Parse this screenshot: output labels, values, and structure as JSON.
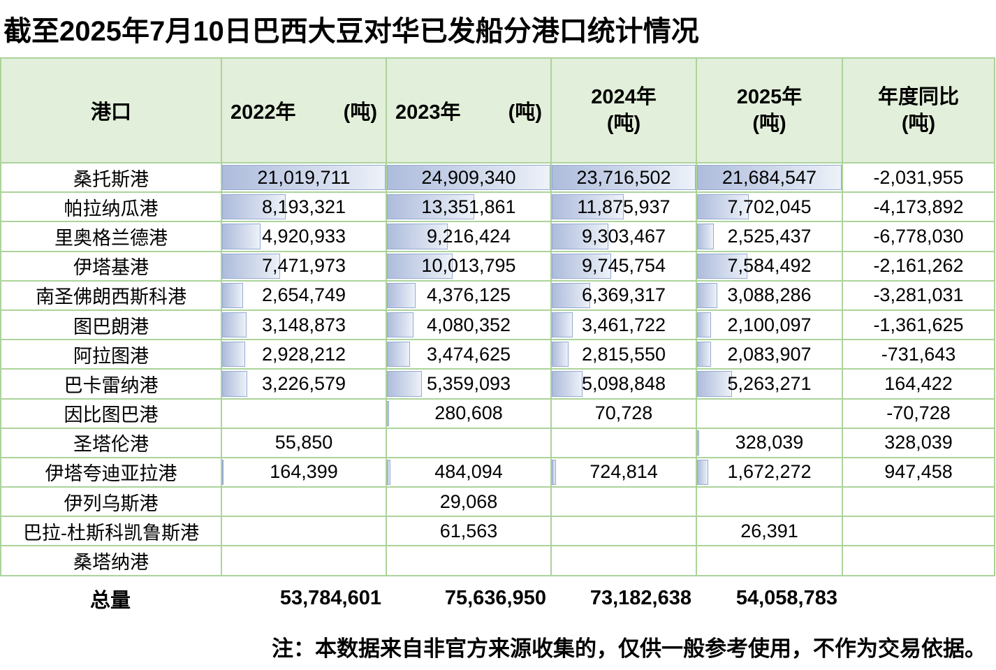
{
  "title": "截至2025年7月10日巴西大豆对华已发船分港口统计情况",
  "header": {
    "port_label": "港口",
    "year_cols": [
      {
        "label": "2022年",
        "unit": "(吨)",
        "layout": "inline"
      },
      {
        "label": "2023年",
        "unit": "(吨)",
        "layout": "inline"
      },
      {
        "label": "2024年",
        "unit": "(吨)",
        "layout": "stacked"
      },
      {
        "label": "2025年",
        "unit": "(吨)",
        "layout": "stacked"
      },
      {
        "label": "年度同比",
        "unit": "(吨)",
        "layout": "stacked"
      }
    ]
  },
  "chart_data": {
    "type": "table",
    "title": "截至2025年7月10日巴西大豆对华已发船分港口统计情况",
    "columns": [
      "港口",
      "2022年(吨)",
      "2023年(吨)",
      "2024年(吨)",
      "2025年(吨)",
      "年度同比(吨)"
    ],
    "databars": "year columns have blue gradient data bars scaled to each column maximum",
    "rows": [
      {
        "port": "桑托斯港",
        "values": [
          21019711,
          24909340,
          23716502,
          21684547
        ],
        "yoy": -2031955
      },
      {
        "port": "帕拉纳瓜港",
        "values": [
          8193321,
          13351861,
          11875937,
          7702045
        ],
        "yoy": -4173892
      },
      {
        "port": "里奥格兰德港",
        "values": [
          4920933,
          9216424,
          9303467,
          2525437
        ],
        "yoy": -6778030
      },
      {
        "port": "伊塔基港",
        "values": [
          7471973,
          10013795,
          9745754,
          7584492
        ],
        "yoy": -2161262
      },
      {
        "port": "南圣佛朗西斯科港",
        "values": [
          2654749,
          4376125,
          6369317,
          3088286
        ],
        "yoy": -3281031
      },
      {
        "port": "图巴朗港",
        "values": [
          3148873,
          4080352,
          3461722,
          2100097
        ],
        "yoy": -1361625
      },
      {
        "port": "阿拉图港",
        "values": [
          2928212,
          3474625,
          2815550,
          2083907
        ],
        "yoy": -731643
      },
      {
        "port": "巴卡雷纳港",
        "values": [
          3226579,
          5359093,
          5098848,
          5263271
        ],
        "yoy": 164422
      },
      {
        "port": "因比图巴港",
        "values": [
          null,
          280608,
          70728,
          null
        ],
        "yoy": -70728
      },
      {
        "port": "圣塔伦港",
        "values": [
          55850,
          null,
          null,
          328039
        ],
        "yoy": 328039
      },
      {
        "port": "伊塔夸迪亚拉港",
        "values": [
          164399,
          484094,
          724814,
          1672272
        ],
        "yoy": 947458
      },
      {
        "port": "伊列乌斯港",
        "values": [
          null,
          29068,
          null,
          null
        ],
        "yoy": null
      },
      {
        "port": "巴拉-杜斯科凯鲁斯港",
        "values": [
          null,
          61563,
          null,
          26391
        ],
        "yoy": null
      },
      {
        "port": "桑塔纳港",
        "values": [
          null,
          null,
          null,
          null
        ],
        "yoy": null
      }
    ],
    "totals": {
      "label": "总量",
      "values": [
        53784601,
        75636950,
        73182638,
        54058783
      ],
      "yoy": null
    }
  },
  "note": "注：本数据来自非官方来源收集的，仅供一般参考使用，不作为交易依据。",
  "colors": {
    "header_bg": "#e2efda",
    "grid_border": "#acd39a",
    "bar_fill_start": "#aebcdc",
    "bar_fill_end": "#eef2f9",
    "bar_border": "#94aad2",
    "text": "#000000"
  }
}
